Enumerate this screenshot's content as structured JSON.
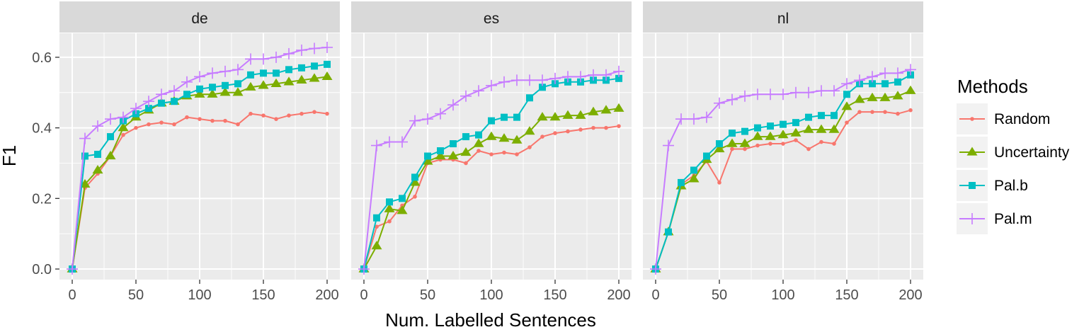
{
  "chart_data": {
    "type": "line",
    "x": [
      0,
      10,
      20,
      30,
      40,
      50,
      60,
      70,
      80,
      90,
      100,
      110,
      120,
      130,
      140,
      150,
      160,
      170,
      180,
      190,
      200
    ],
    "xlabel": "Num. Labelled Sentences",
    "ylabel": "F1",
    "xlim": [
      -10,
      210
    ],
    "ylim": [
      -0.03,
      0.668
    ],
    "x_ticks": [
      "0",
      "50",
      "100",
      "150",
      "200"
    ],
    "x_tick_values": [
      0,
      50,
      100,
      150,
      200
    ],
    "y_ticks": [
      "0.0",
      "0.2",
      "0.4",
      "0.6"
    ],
    "y_tick_values": [
      0,
      0.2,
      0.4,
      0.6
    ],
    "grid": true,
    "legend": {
      "title": "Methods",
      "placement": "right",
      "entries": [
        "Random",
        "Uncertainty",
        "Pal.b",
        "Pal.m"
      ]
    },
    "series_styles": [
      {
        "name": "Random",
        "color": "#F8766D",
        "marker": "dot"
      },
      {
        "name": "Uncertainty",
        "color": "#7CAE00",
        "marker": "triangle"
      },
      {
        "name": "Pal.b",
        "color": "#00BFC4",
        "marker": "square"
      },
      {
        "name": "Pal.m",
        "color": "#C77CFF",
        "marker": "plus"
      }
    ],
    "panels": [
      {
        "label": "de",
        "series": [
          {
            "name": "Random",
            "values": [
              0.0,
              0.23,
              0.27,
              0.32,
              0.38,
              0.4,
              0.41,
              0.415,
              0.41,
              0.43,
              0.425,
              0.42,
              0.42,
              0.41,
              0.44,
              0.435,
              0.425,
              0.435,
              0.44,
              0.445,
              0.44
            ]
          },
          {
            "name": "Uncertainty",
            "values": [
              0.0,
              0.24,
              0.28,
              0.32,
              0.4,
              0.43,
              0.45,
              0.47,
              0.475,
              0.49,
              0.495,
              0.495,
              0.5,
              0.5,
              0.515,
              0.52,
              0.525,
              0.53,
              0.535,
              0.54,
              0.545
            ]
          },
          {
            "name": "Pal.b",
            "values": [
              0.0,
              0.32,
              0.325,
              0.375,
              0.42,
              0.44,
              0.455,
              0.47,
              0.475,
              0.495,
              0.51,
              0.515,
              0.52,
              0.525,
              0.55,
              0.555,
              0.555,
              0.565,
              0.57,
              0.575,
              0.58
            ]
          },
          {
            "name": "Pal.m",
            "values": [
              0.0,
              0.37,
              0.405,
              0.425,
              0.43,
              0.455,
              0.475,
              0.495,
              0.505,
              0.53,
              0.545,
              0.555,
              0.56,
              0.565,
              0.595,
              0.595,
              0.6,
              0.61,
              0.62,
              0.625,
              0.628
            ]
          }
        ]
      },
      {
        "label": "es",
        "series": [
          {
            "name": "Random",
            "values": [
              0.0,
              0.12,
              0.135,
              0.18,
              0.205,
              0.3,
              0.31,
              0.31,
              0.3,
              0.335,
              0.325,
              0.33,
              0.325,
              0.345,
              0.375,
              0.385,
              0.39,
              0.395,
              0.4,
              0.4,
              0.405
            ]
          },
          {
            "name": "Uncertainty",
            "values": [
              0.0,
              0.065,
              0.17,
              0.165,
              0.245,
              0.305,
              0.32,
              0.32,
              0.33,
              0.355,
              0.375,
              0.37,
              0.365,
              0.39,
              0.43,
              0.43,
              0.435,
              0.435,
              0.445,
              0.45,
              0.455
            ]
          },
          {
            "name": "Pal.b",
            "values": [
              0.0,
              0.145,
              0.19,
              0.2,
              0.26,
              0.32,
              0.335,
              0.355,
              0.375,
              0.38,
              0.42,
              0.43,
              0.43,
              0.485,
              0.515,
              0.525,
              0.53,
              0.53,
              0.535,
              0.535,
              0.54
            ]
          },
          {
            "name": "Pal.m",
            "values": [
              0.0,
              0.35,
              0.36,
              0.36,
              0.42,
              0.425,
              0.44,
              0.465,
              0.49,
              0.505,
              0.52,
              0.53,
              0.535,
              0.535,
              0.535,
              0.54,
              0.545,
              0.545,
              0.55,
              0.55,
              0.56
            ]
          }
        ]
      },
      {
        "label": "nl",
        "series": [
          {
            "name": "Random",
            "values": [
              0.0,
              0.105,
              0.24,
              0.265,
              0.305,
              0.245,
              0.34,
              0.34,
              0.35,
              0.355,
              0.355,
              0.365,
              0.34,
              0.36,
              0.355,
              0.415,
              0.445,
              0.445,
              0.445,
              0.44,
              0.45
            ]
          },
          {
            "name": "Uncertainty",
            "values": [
              0.0,
              0.105,
              0.235,
              0.255,
              0.31,
              0.34,
              0.355,
              0.355,
              0.375,
              0.375,
              0.38,
              0.385,
              0.395,
              0.395,
              0.395,
              0.46,
              0.48,
              0.485,
              0.485,
              0.49,
              0.505
            ]
          },
          {
            "name": "Pal.b",
            "values": [
              0.0,
              0.105,
              0.245,
              0.28,
              0.32,
              0.355,
              0.385,
              0.39,
              0.4,
              0.405,
              0.41,
              0.415,
              0.43,
              0.435,
              0.435,
              0.495,
              0.525,
              0.525,
              0.525,
              0.53,
              0.55
            ]
          },
          {
            "name": "Pal.m",
            "values": [
              0.0,
              0.35,
              0.425,
              0.425,
              0.43,
              0.47,
              0.48,
              0.49,
              0.495,
              0.495,
              0.495,
              0.5,
              0.5,
              0.505,
              0.505,
              0.525,
              0.535,
              0.545,
              0.555,
              0.555,
              0.565
            ]
          }
        ]
      }
    ]
  }
}
